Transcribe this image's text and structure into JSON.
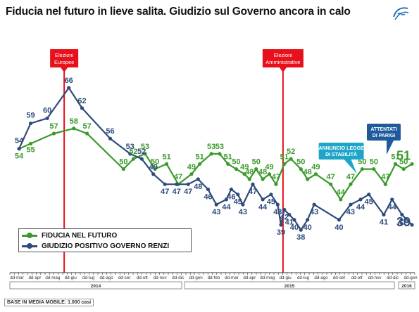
{
  "title": "Fiducia nel futuro in lieve salita. Giudizio sul Governo ancora in calo",
  "base_note": "BASE IN MEDIA MOBILE: 1.000 casi",
  "legend": {
    "fiducia": "FIDUCIA NEL FUTURO",
    "renzi": "GIUDIZIO POSITIVO GOVERNO RENZI"
  },
  "colors": {
    "fiducia": "#3a9a2b",
    "renzi": "#2f4b7c",
    "event_line": "#e8101a",
    "callout_cyan": "#1fa5c9",
    "callout_blue": "#1f5b9c"
  },
  "icons": {
    "logo": "swirl-logo-icon"
  },
  "chart_data": {
    "type": "line",
    "x_tick_labels": [
      "dd-mar",
      "dd-apr",
      "dd-mag",
      "dd-giu",
      "dd-lug",
      "dd-ago",
      "dd-set",
      "dd-ott",
      "dd-nov",
      "dd-dic",
      "dd-gen",
      "dd-feb",
      "dd-mar",
      "dd-apr",
      "dd-mag",
      "dd-giu",
      "dd-lug",
      "dd-ago",
      "dd-set",
      "dd-ott",
      "dd-nov",
      "dd-dic",
      "dd-gen"
    ],
    "year_labels": [
      "2014",
      "2015",
      "2016"
    ],
    "ylim": [
      30,
      75
    ],
    "series": [
      {
        "name": "FIDUCIA NEL FUTURO",
        "key": "fiducia",
        "points": [
          {
            "t": 0.3,
            "v": 54,
            "label": "54"
          },
          {
            "t": 1.0,
            "v": 55,
            "label": "55"
          },
          {
            "t": 2.4,
            "v": 57,
            "label": "57"
          },
          {
            "t": 3.6,
            "v": 58,
            "label": "58"
          },
          {
            "t": 4.4,
            "v": 57,
            "label": "57"
          },
          {
            "t": 6.6,
            "v": 50,
            "label": "50"
          },
          {
            "t": 7.2,
            "v": 52,
            "label": "52"
          },
          {
            "t": 7.9,
            "v": 53,
            "label": "53"
          },
          {
            "t": 8.5,
            "v": 50,
            "label": "50"
          },
          {
            "t": 9.2,
            "v": 51,
            "label": "51"
          },
          {
            "t": 9.9,
            "v": 47,
            "label": "47"
          },
          {
            "t": 10.7,
            "v": 49,
            "label": "49"
          },
          {
            "t": 11.2,
            "v": 51,
            "label": "51"
          },
          {
            "t": 11.9,
            "v": 53,
            "label": "53"
          },
          {
            "t": 12.4,
            "v": 53,
            "label": "53"
          },
          {
            "t": 12.9,
            "v": 51,
            "label": "51"
          },
          {
            "t": 13.4,
            "v": 50,
            "label": "50"
          },
          {
            "t": 13.9,
            "v": 49,
            "label": "49"
          },
          {
            "t": 14.2,
            "v": 48,
            "label": "48"
          },
          {
            "t": 14.6,
            "v": 50,
            "label": "50"
          },
          {
            "t": 15.0,
            "v": 48,
            "label": "48"
          },
          {
            "t": 15.4,
            "v": 49,
            "label": "49"
          },
          {
            "t": 15.8,
            "v": 47,
            "label": "47"
          },
          {
            "t": 16.3,
            "v": 51,
            "label": "51"
          },
          {
            "t": 16.7,
            "v": 52,
            "label": "52"
          },
          {
            "t": 17.3,
            "v": 50,
            "label": "50"
          },
          {
            "t": 17.7,
            "v": 48,
            "label": "48"
          },
          {
            "t": 18.2,
            "v": 49,
            "label": "49"
          },
          {
            "t": 19.1,
            "v": 47,
            "label": "47"
          },
          {
            "t": 19.7,
            "v": 44,
            "label": "44"
          },
          {
            "t": 20.3,
            "v": 47,
            "label": "47"
          },
          {
            "t": 21.0,
            "v": 50,
            "label": "50"
          },
          {
            "t": 21.7,
            "v": 50,
            "label": "50"
          },
          {
            "t": 22.4,
            "v": 47,
            "label": "47"
          },
          {
            "t": 23.0,
            "v": 51,
            "label": "51"
          },
          {
            "t": 23.5,
            "v": 50,
            "label": "50"
          },
          {
            "t": 24.0,
            "v": 51,
            "label": "51"
          }
        ]
      },
      {
        "name": "GIUDIZIO POSITIVO GOVERNO RENZI",
        "key": "renzi",
        "points": [
          {
            "t": 0.3,
            "v": 54,
            "label": "54"
          },
          {
            "t": 1.0,
            "v": 59,
            "label": "59"
          },
          {
            "t": 2.0,
            "v": 60,
            "label": "60"
          },
          {
            "t": 3.3,
            "v": 66,
            "label": "66"
          },
          {
            "t": 4.1,
            "v": 62,
            "label": "62"
          },
          {
            "t": 5.8,
            "v": 56,
            "label": "56"
          },
          {
            "t": 7.0,
            "v": 53,
            "label": "53"
          },
          {
            "t": 7.7,
            "v": 52,
            "label": "52"
          },
          {
            "t": 8.4,
            "v": 49,
            "label": "49"
          },
          {
            "t": 9.1,
            "v": 47,
            "label": "47"
          },
          {
            "t": 9.8,
            "v": 47,
            "label": "47"
          },
          {
            "t": 10.5,
            "v": 47,
            "label": "47"
          },
          {
            "t": 11.1,
            "v": 48,
            "label": "48"
          },
          {
            "t": 11.7,
            "v": 46,
            "label": "46"
          },
          {
            "t": 12.2,
            "v": 43,
            "label": "43"
          },
          {
            "t": 12.8,
            "v": 44,
            "label": "44"
          },
          {
            "t": 13.1,
            "v": 46,
            "label": "46"
          },
          {
            "t": 13.5,
            "v": 45,
            "label": "45"
          },
          {
            "t": 13.8,
            "v": 43,
            "label": "43"
          },
          {
            "t": 14.4,
            "v": 47,
            "label": "47"
          },
          {
            "t": 15.0,
            "v": 44,
            "label": "44"
          },
          {
            "t": 15.5,
            "v": 45,
            "label": "45"
          },
          {
            "t": 15.9,
            "v": 43,
            "label": "43"
          },
          {
            "t": 16.1,
            "v": 39,
            "label": "39"
          },
          {
            "t": 16.3,
            "v": 42,
            "label": "42"
          },
          {
            "t": 16.6,
            "v": 41,
            "label": "41"
          },
          {
            "t": 16.9,
            "v": 40,
            "label": "40"
          },
          {
            "t": 17.3,
            "v": 38,
            "label": "38"
          },
          {
            "t": 17.7,
            "v": 40,
            "label": "40"
          },
          {
            "t": 18.1,
            "v": 43,
            "label": "43"
          },
          {
            "t": 19.6,
            "v": 40,
            "label": "40"
          },
          {
            "t": 20.3,
            "v": 43,
            "label": "43"
          },
          {
            "t": 20.9,
            "v": 44,
            "label": "44"
          },
          {
            "t": 21.4,
            "v": 45,
            "label": "45"
          },
          {
            "t": 22.3,
            "v": 41,
            "label": "41"
          },
          {
            "t": 22.8,
            "v": 44,
            "label": "44"
          },
          {
            "t": 23.4,
            "v": 41,
            "label": "41"
          },
          {
            "t": 24.0,
            "v": 39,
            "label": "39"
          }
        ]
      }
    ],
    "events": [
      {
        "t": 3.0,
        "label": [
          "Elezioni",
          "Europee"
        ]
      },
      {
        "t": 16.2,
        "label": [
          "Elezioni",
          "Amministrative"
        ]
      }
    ],
    "callouts": [
      {
        "t": 20.5,
        "label": [
          "ANNUNCIO LEGGE",
          "DI STABILITÀ"
        ],
        "style": "cyan"
      },
      {
        "t": 22.3,
        "label": [
          "ATTENTATI",
          "DI PARIGI"
        ],
        "style": "blue"
      }
    ],
    "legend_position": "bottom-left",
    "grid": false
  }
}
